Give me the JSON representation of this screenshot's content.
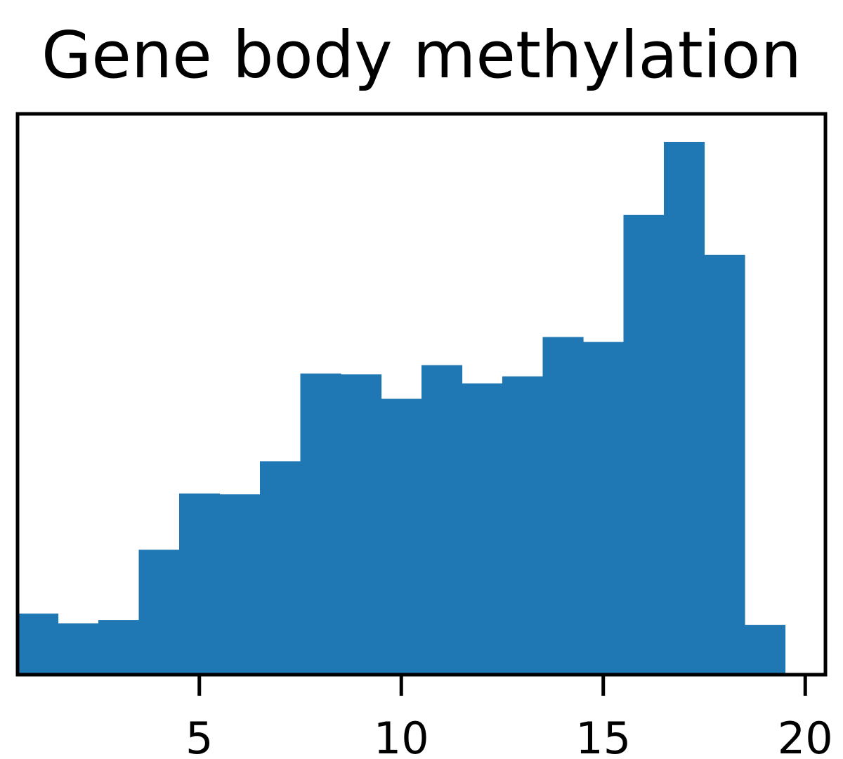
{
  "chart_data": {
    "type": "bar",
    "title": "Gene body methylation",
    "xlabel": "",
    "ylabel": "",
    "bin_width": 1,
    "bins": [
      {
        "x_start": 0.5,
        "x_end": 1.5,
        "count": 87
      },
      {
        "x_start": 1.5,
        "x_end": 2.5,
        "count": 73
      },
      {
        "x_start": 2.5,
        "x_end": 3.5,
        "count": 78
      },
      {
        "x_start": 3.5,
        "x_end": 4.5,
        "count": 178
      },
      {
        "x_start": 4.5,
        "x_end": 5.5,
        "count": 258
      },
      {
        "x_start": 5.5,
        "x_end": 6.5,
        "count": 257
      },
      {
        "x_start": 6.5,
        "x_end": 7.5,
        "count": 304
      },
      {
        "x_start": 7.5,
        "x_end": 8.5,
        "count": 429
      },
      {
        "x_start": 8.5,
        "x_end": 9.5,
        "count": 428
      },
      {
        "x_start": 9.5,
        "x_end": 10.5,
        "count": 393
      },
      {
        "x_start": 10.5,
        "x_end": 11.5,
        "count": 441
      },
      {
        "x_start": 11.5,
        "x_end": 12.5,
        "count": 415
      },
      {
        "x_start": 12.5,
        "x_end": 13.5,
        "count": 425
      },
      {
        "x_start": 13.5,
        "x_end": 14.5,
        "count": 481
      },
      {
        "x_start": 14.5,
        "x_end": 15.5,
        "count": 474
      },
      {
        "x_start": 15.5,
        "x_end": 16.5,
        "count": 655
      },
      {
        "x_start": 16.5,
        "x_end": 17.5,
        "count": 759
      },
      {
        "x_start": 17.5,
        "x_end": 18.5,
        "count": 598
      },
      {
        "x_start": 18.5,
        "x_end": 19.5,
        "count": 71
      }
    ],
    "xlim": [
      0.5,
      20.5
    ],
    "ylim": [
      0,
      799
    ],
    "x_ticks": [
      5,
      10,
      15,
      20
    ],
    "x_tick_labels": [
      "5",
      "10",
      "15",
      "20"
    ],
    "y_ticks_visible": false,
    "grid": false,
    "legend": "none",
    "bar_color": "#1f77b4",
    "axis_color": "#000000"
  }
}
